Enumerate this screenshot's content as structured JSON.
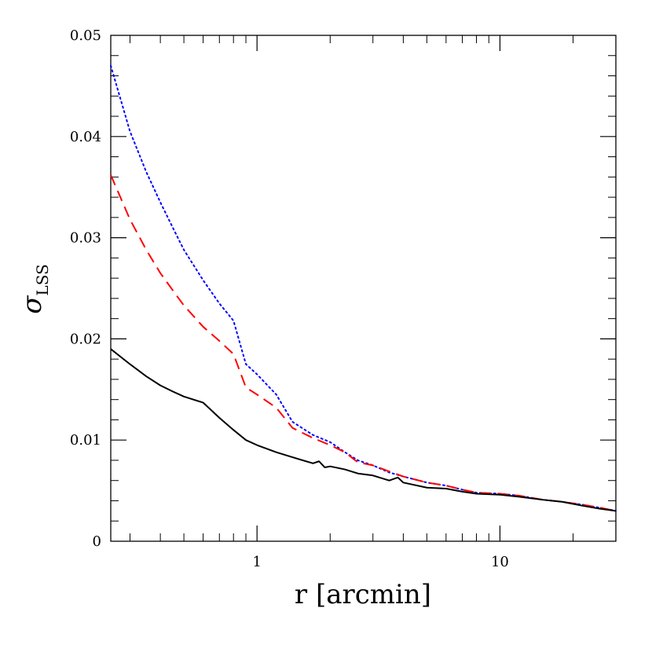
{
  "chart_data": {
    "type": "line",
    "xlabel": "r [arcmin]",
    "ylabel_symbol": "σ",
    "ylabel_subscript": "LSS",
    "x_scale": "log",
    "xlim": [
      0.25,
      30
    ],
    "ylim": [
      0,
      0.05
    ],
    "x_ticks": [
      1,
      10
    ],
    "x_tick_labels": [
      "1",
      "10"
    ],
    "y_ticks": [
      0,
      0.01,
      0.02,
      0.03,
      0.04,
      0.05
    ],
    "y_tick_labels": [
      "0",
      "0.01",
      "0.02",
      "0.03",
      "0.04",
      "0.05"
    ],
    "grid": false,
    "legend": "none",
    "series": [
      {
        "style": "dotted",
        "color": "#0000ff",
        "x": [
          0.25,
          0.3,
          0.35,
          0.4,
          0.45,
          0.5,
          0.6,
          0.7,
          0.8,
          0.9,
          1.0,
          1.2,
          1.4,
          1.7,
          2.0,
          2.3,
          2.6,
          3.0,
          3.5,
          4.0,
          5.0,
          6.0,
          7.0,
          8.0,
          10.0,
          12.0,
          15.0,
          18.0,
          22.0,
          26.0,
          30.0
        ],
        "y": [
          0.047,
          0.0405,
          0.0365,
          0.0335,
          0.031,
          0.0288,
          0.0258,
          0.0235,
          0.0218,
          0.0175,
          0.0165,
          0.0145,
          0.0118,
          0.0105,
          0.0098,
          0.0088,
          0.008,
          0.0075,
          0.0068,
          0.0064,
          0.0058,
          0.0055,
          0.0051,
          0.0048,
          0.0047,
          0.0045,
          0.0041,
          0.0039,
          0.0036,
          0.0033,
          0.003
        ]
      },
      {
        "style": "dashed",
        "color": "#ff0000",
        "x": [
          0.25,
          0.3,
          0.35,
          0.4,
          0.45,
          0.5,
          0.6,
          0.7,
          0.8,
          0.9,
          1.0,
          1.2,
          1.4,
          1.7,
          2.0,
          2.3,
          2.6,
          3.0,
          3.5,
          4.0,
          5.0,
          6.0,
          7.0,
          8.0,
          10.0,
          12.0,
          15.0,
          18.0,
          22.0,
          26.0,
          30.0
        ],
        "y": [
          0.0362,
          0.0318,
          0.0288,
          0.0265,
          0.0248,
          0.0233,
          0.0212,
          0.0198,
          0.0185,
          0.0152,
          0.0145,
          0.0132,
          0.0112,
          0.0102,
          0.0095,
          0.0088,
          0.0078,
          0.0075,
          0.0069,
          0.0064,
          0.0058,
          0.0055,
          0.0051,
          0.0048,
          0.0047,
          0.0045,
          0.0041,
          0.0039,
          0.0036,
          0.0033,
          0.003
        ]
      },
      {
        "style": "solid",
        "color": "#000000",
        "x": [
          0.25,
          0.3,
          0.35,
          0.4,
          0.45,
          0.5,
          0.6,
          0.7,
          0.8,
          0.9,
          1.0,
          1.2,
          1.4,
          1.7,
          1.8,
          1.9,
          2.0,
          2.3,
          2.6,
          3.0,
          3.5,
          3.8,
          4.0,
          5.0,
          6.0,
          7.0,
          8.0,
          10.0,
          12.0,
          15.0,
          18.0,
          22.0,
          26.0,
          30.0
        ],
        "y": [
          0.019,
          0.0175,
          0.0163,
          0.0154,
          0.0148,
          0.0143,
          0.0137,
          0.0122,
          0.011,
          0.01,
          0.0095,
          0.0088,
          0.0083,
          0.0077,
          0.0079,
          0.0073,
          0.0074,
          0.0071,
          0.0067,
          0.0065,
          0.006,
          0.0063,
          0.0058,
          0.0053,
          0.0052,
          0.0049,
          0.0047,
          0.0046,
          0.0044,
          0.0041,
          0.0039,
          0.0035,
          0.0032,
          0.003
        ]
      }
    ]
  }
}
